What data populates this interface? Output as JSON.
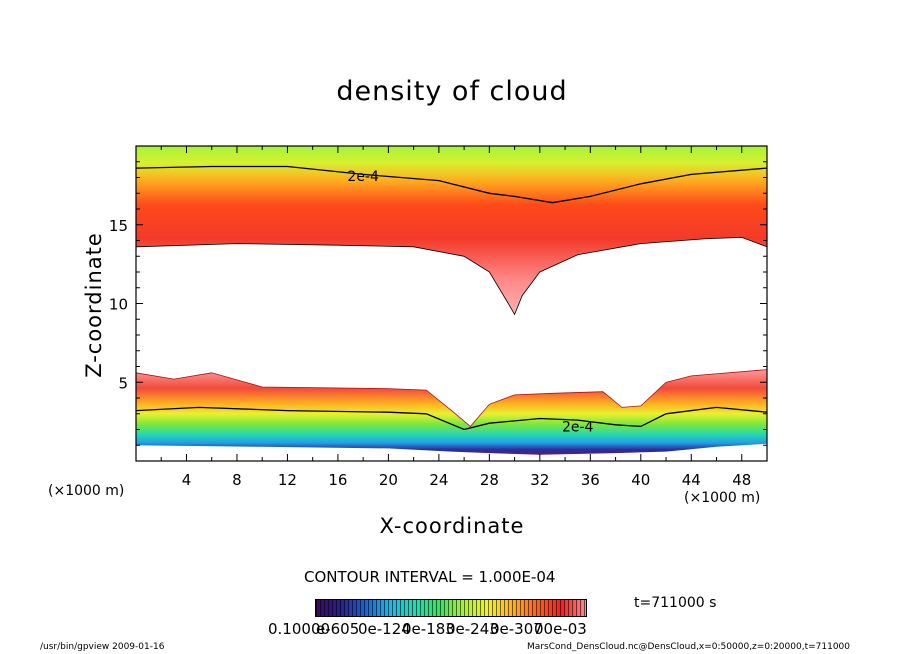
{
  "chart_data": {
    "type": "heatmap",
    "title": "density of cloud",
    "xlabel": "X-coordinate",
    "ylabel": "Z-coordinate",
    "x_unit": "(×1000 m)",
    "y_unit": "(×1000 m)",
    "xlim": [
      0,
      50
    ],
    "ylim": [
      0,
      20
    ],
    "x_ticks": [
      4,
      8,
      12,
      16,
      20,
      24,
      28,
      32,
      36,
      40,
      44,
      48
    ],
    "y_ticks": [
      5,
      10,
      15
    ],
    "contour_labels": [
      {
        "text": "2e-4",
        "x": 18,
        "z": 18.1
      },
      {
        "text": "2e-4",
        "x": 35,
        "z": 2.2
      }
    ],
    "contour_interval": "CONTOUR INTERVAL = 1.000E-04",
    "time": "t=711000 s",
    "colorbar": {
      "labels": [
        "0.10000",
        "e-605",
        "0e-124",
        "0e-183",
        "0e-243",
        "0e-307",
        "00e-03"
      ],
      "colors": [
        "#3a0a5a",
        "#2a1f8a",
        "#1f5fd0",
        "#22b4e6",
        "#27d8b0",
        "#37e060",
        "#a8f03a",
        "#f0f030",
        "#ffb020",
        "#ff6020",
        "#f02020",
        "#ff8a8a"
      ]
    },
    "upper_cloud": {
      "top_contour": [
        [
          0,
          18.6
        ],
        [
          6,
          18.7
        ],
        [
          12,
          18.7
        ],
        [
          18,
          18.2
        ],
        [
          24,
          17.8
        ],
        [
          28,
          17.0
        ],
        [
          30,
          16.8
        ],
        [
          33,
          16.4
        ],
        [
          36,
          16.8
        ],
        [
          40,
          17.6
        ],
        [
          44,
          18.2
        ],
        [
          50,
          18.6
        ]
      ],
      "base": [
        [
          0,
          13.6
        ],
        [
          8,
          13.8
        ],
        [
          16,
          13.7
        ],
        [
          22,
          13.6
        ],
        [
          26,
          13.0
        ],
        [
          28,
          12.0
        ],
        [
          29.5,
          10.0
        ],
        [
          30,
          9.3
        ],
        [
          30.6,
          10.5
        ],
        [
          32,
          12.0
        ],
        [
          35,
          13.1
        ],
        [
          40,
          13.8
        ],
        [
          45,
          14.1
        ],
        [
          48,
          14.2
        ],
        [
          50,
          13.6
        ]
      ]
    },
    "lower_cloud": {
      "top": [
        [
          0,
          5.6
        ],
        [
          3,
          5.2
        ],
        [
          6,
          5.6
        ],
        [
          10,
          4.7
        ],
        [
          20,
          4.6
        ],
        [
          23,
          4.5
        ],
        [
          25,
          3.2
        ],
        [
          26.5,
          2.2
        ],
        [
          28,
          3.6
        ],
        [
          30,
          4.2
        ],
        [
          33,
          4.3
        ],
        [
          37,
          4.4
        ],
        [
          38.5,
          3.4
        ],
        [
          40,
          3.5
        ],
        [
          42,
          5.0
        ],
        [
          44,
          5.4
        ],
        [
          50,
          5.8
        ]
      ],
      "contour": [
        [
          0,
          3.2
        ],
        [
          5,
          3.4
        ],
        [
          12,
          3.2
        ],
        [
          20,
          3.1
        ],
        [
          23,
          3.0
        ],
        [
          26,
          2.0
        ],
        [
          28,
          2.4
        ],
        [
          32,
          2.7
        ],
        [
          35,
          2.6
        ],
        [
          38,
          2.3
        ],
        [
          40,
          2.2
        ],
        [
          42,
          3.0
        ],
        [
          46,
          3.4
        ],
        [
          50,
          3.1
        ]
      ],
      "bottom": [
        [
          0,
          1.0
        ],
        [
          10,
          0.9
        ],
        [
          20,
          0.8
        ],
        [
          25,
          0.6
        ],
        [
          28,
          0.5
        ],
        [
          32,
          0.4
        ],
        [
          38,
          0.5
        ],
        [
          42,
          0.6
        ],
        [
          46,
          0.9
        ],
        [
          50,
          1.1
        ]
      ]
    }
  },
  "footer": {
    "left": "/usr/bin/gpview   2009-01-16",
    "right": "MarsCond_DensCloud.nc@DensCloud,x=0:50000,z=0:20000,t=711000"
  }
}
